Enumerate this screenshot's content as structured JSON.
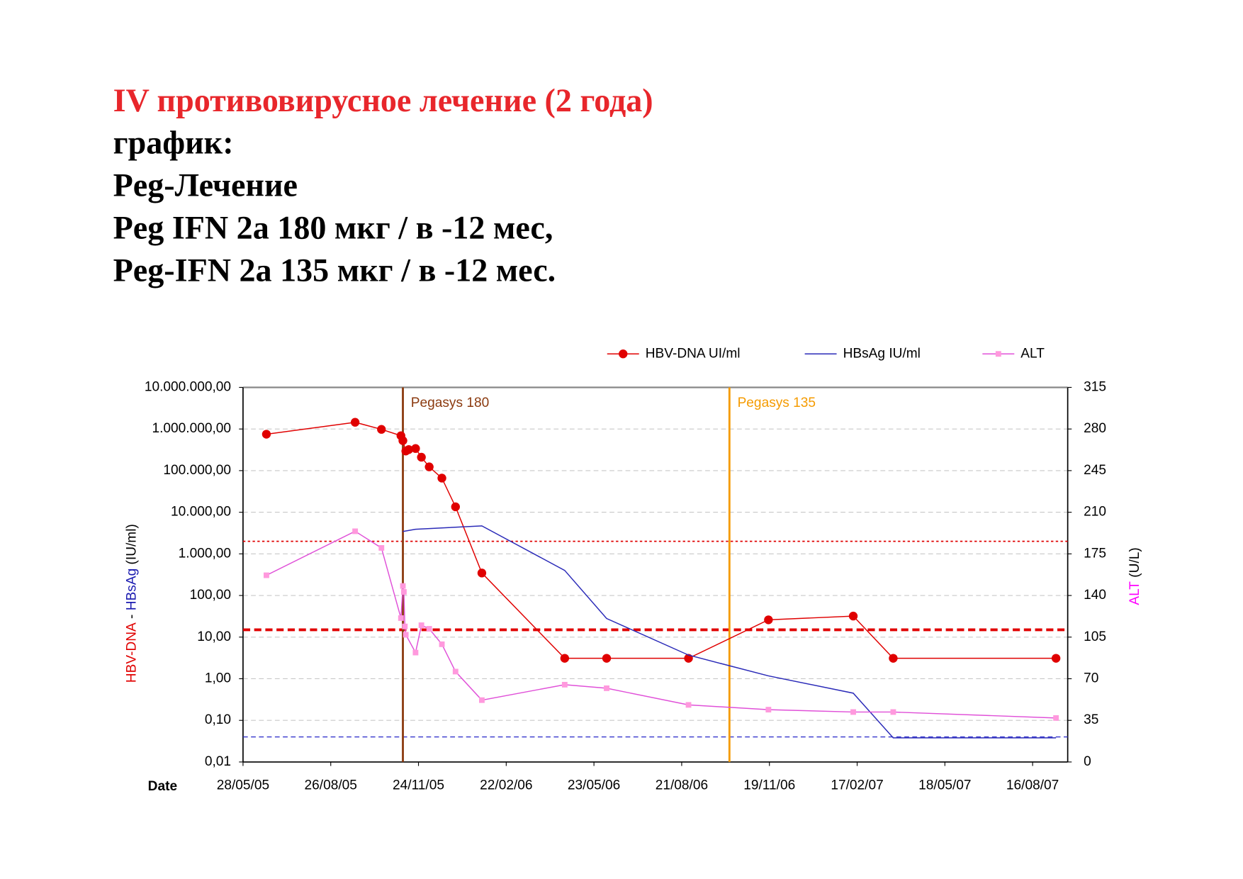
{
  "header": {
    "lines": [
      {
        "text": "IV противовирусное лечение (2 года)",
        "color": "#e8262b"
      },
      {
        "text": "график:",
        "color": "#000000"
      },
      {
        "text": "Peg-Лечение",
        "color": "#000000"
      },
      {
        "text": "Peg IFN 2a 180 мкг / в -12 мес,",
        "color": "#000000"
      },
      {
        "text": "Peg-IFN 2a 135 мкг / в -12 мес.",
        "color": "#000000"
      }
    ]
  },
  "chart_data": {
    "type": "line",
    "y_scale": "log",
    "grid": true,
    "x_label": "Date",
    "y_label_parts": [
      {
        "text": "HBV-DNA",
        "color": "#e00000"
      },
      {
        "text": " - ",
        "color": "#000000"
      },
      {
        "text": "HBsAg",
        "color": "#1a1ab0"
      },
      {
        "text": " (IU/ml)",
        "color": "#000000"
      }
    ],
    "y2_label_parts": [
      {
        "text": "ALT",
        "color": "#ff00ff"
      },
      {
        "text": " (U/L)",
        "color": "#000000"
      }
    ],
    "xlim": [
      "28/05/05",
      "21/09/07"
    ],
    "xticks": [
      "28/05/05",
      "26/08/05",
      "24/11/05",
      "22/02/06",
      "23/05/06",
      "21/08/06",
      "19/11/06",
      "17/02/07",
      "18/05/07",
      "16/08/07"
    ],
    "ylim": [
      0.01,
      10000000
    ],
    "yticks": [
      {
        "value": 0.01,
        "label": "0,01"
      },
      {
        "value": 0.1,
        "label": "0,10"
      },
      {
        "value": 1,
        "label": "1,00"
      },
      {
        "value": 10,
        "label": "10,00"
      },
      {
        "value": 100,
        "label": "100,00"
      },
      {
        "value": 1000,
        "label": "1.000,00"
      },
      {
        "value": 10000,
        "label": "10.000,00"
      },
      {
        "value": 100000,
        "label": "100.000,00"
      },
      {
        "value": 1000000,
        "label": "1.000.000,00"
      },
      {
        "value": 10000000,
        "label": "10.000.000,00"
      }
    ],
    "y2lim": [
      0,
      315
    ],
    "y2ticks": [
      0,
      35,
      70,
      105,
      140,
      175,
      210,
      245,
      280,
      315
    ],
    "series": [
      {
        "name": "HBV-DNA UI/ml",
        "color": "#e00000",
        "marker": "circle",
        "x": [
          "21/06/05",
          "20/09/05",
          "17/10/05",
          "06/11/05",
          "08/11/05",
          "11/11/05",
          "14/11/05",
          "21/11/05",
          "27/11/05",
          "05/12/05",
          "18/12/05",
          "01/01/06",
          "28/01/06",
          "23/04/06",
          "05/06/06",
          "28/08/06",
          "18/11/06",
          "13/02/07",
          "26/03/07",
          "09/09/07"
        ],
        "values": [
          750000,
          1450000,
          980000,
          690000,
          525000,
          295000,
          320000,
          340000,
          210000,
          123000,
          66000,
          13500,
          347,
          3.1,
          3.1,
          3.1,
          26,
          32,
          3.1,
          3.1
        ]
      },
      {
        "name": "HBsAg IU/ml",
        "color": "#2a2ab8",
        "marker": null,
        "x": [
          "08/11/05",
          "21/11/05",
          "28/01/06",
          "23/04/06",
          "05/06/06",
          "28/08/06",
          "18/11/06",
          "13/02/07",
          "26/03/07",
          "09/09/07"
        ],
        "values": [
          3450,
          3900,
          4700,
          400,
          28,
          3.7,
          1.17,
          0.45,
          0.038,
          0.038
        ]
      },
      {
        "name": "ALT",
        "color": "#e050d8",
        "marker": "square",
        "marker_color": "#ff99dd",
        "axis": "y2",
        "x": [
          "21/06/05",
          "20/09/05",
          "17/10/05",
          "06/11/05",
          "08/11/05",
          "09/11/05",
          "10/11/05",
          "11/11/05",
          "21/11/05",
          "27/11/05",
          "05/12/05",
          "18/12/05",
          "01/01/06",
          "28/01/06",
          "23/04/06",
          "05/06/06",
          "28/08/06",
          "18/11/06",
          "13/02/07",
          "26/03/07",
          "09/09/07"
        ],
        "values": [
          157,
          194,
          180,
          121,
          148,
          143,
          114,
          107,
          92,
          115,
          112,
          99,
          76,
          52,
          65,
          62,
          48,
          44,
          42,
          42,
          37
        ]
      }
    ],
    "reference_lines": [
      {
        "value": 2000,
        "color": "#e00000",
        "style": "dotted"
      },
      {
        "value": 15,
        "color": "#e00000",
        "style": "bold-dashed"
      },
      {
        "value": 0.04,
        "color": "#3333cc",
        "style": "dashed"
      }
    ],
    "annotations": [
      {
        "text": "Pegasys 180",
        "x": "08/11/05",
        "color": "#8b3a0f"
      },
      {
        "text": "Pegasys 135",
        "x": "09/10/06",
        "color": "#f59b00"
      }
    ]
  }
}
